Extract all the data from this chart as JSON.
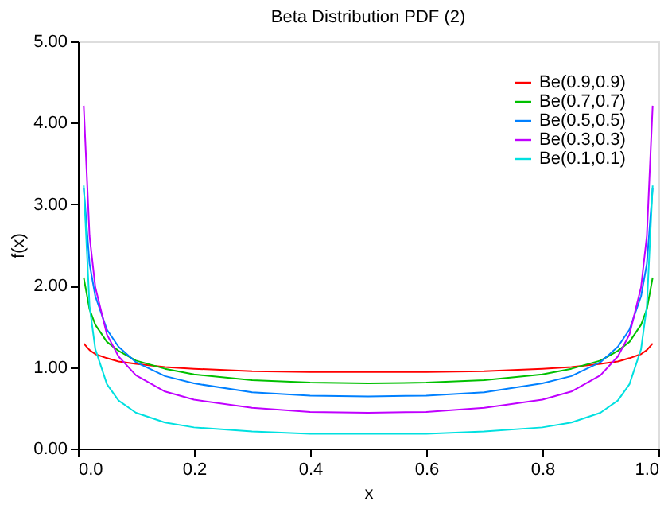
{
  "chart_data": {
    "type": "line",
    "title": "Beta Distribution PDF (2)",
    "xlabel": "x",
    "ylabel": "f(x)",
    "x": [
      0.01,
      0.02,
      0.03,
      0.05,
      0.07,
      0.1,
      0.15,
      0.2,
      0.3,
      0.4,
      0.5,
      0.6,
      0.7,
      0.8,
      0.85,
      0.9,
      0.93,
      0.95,
      0.97,
      0.98,
      0.99
    ],
    "series": [
      {
        "name": "Be(0.9,0.9)",
        "color": "#ff0000",
        "values": [
          1.29,
          1.21,
          1.16,
          1.11,
          1.07,
          1.04,
          1.0,
          0.98,
          0.95,
          0.94,
          0.94,
          0.94,
          0.95,
          0.98,
          1.0,
          1.04,
          1.07,
          1.11,
          1.16,
          1.21,
          1.29
        ]
      },
      {
        "name": "Be(0.7,0.7)",
        "color": "#00c000",
        "values": [
          2.1,
          1.71,
          1.52,
          1.31,
          1.2,
          1.08,
          0.98,
          0.91,
          0.84,
          0.81,
          0.8,
          0.81,
          0.84,
          0.91,
          0.98,
          1.08,
          1.2,
          1.31,
          1.52,
          1.71,
          2.1
        ]
      },
      {
        "name": "Be(0.5,0.5)",
        "color": "#0080ff",
        "values": [
          3.2,
          2.27,
          1.87,
          1.46,
          1.25,
          1.06,
          0.89,
          0.8,
          0.69,
          0.65,
          0.64,
          0.65,
          0.69,
          0.8,
          0.89,
          1.06,
          1.25,
          1.46,
          1.87,
          2.27,
          3.2
        ]
      },
      {
        "name": "Be(0.3,0.3)",
        "color": "#c000ff",
        "values": [
          4.21,
          2.61,
          1.98,
          1.4,
          1.13,
          0.9,
          0.7,
          0.6,
          0.5,
          0.45,
          0.44,
          0.45,
          0.5,
          0.6,
          0.7,
          0.9,
          1.13,
          1.4,
          1.98,
          2.61,
          4.21
        ]
      },
      {
        "name": "Be(0.1,0.1)",
        "color": "#00e0e0",
        "values": [
          3.23,
          1.75,
          1.22,
          0.79,
          0.59,
          0.44,
          0.32,
          0.26,
          0.21,
          0.18,
          0.18,
          0.18,
          0.21,
          0.26,
          0.32,
          0.44,
          0.59,
          0.79,
          1.22,
          1.75,
          3.23
        ]
      }
    ],
    "xlim": [
      0,
      1
    ],
    "ylim": [
      0,
      5
    ],
    "xticks": [
      {
        "value": 0,
        "label": "0.0"
      },
      0.2,
      0.4,
      0.6,
      0.8,
      {
        "value": 1,
        "label": "1.0"
      }
    ],
    "yticks": [
      {
        "value": 0,
        "label": "0.00"
      },
      {
        "value": 1,
        "label": "1.00"
      },
      {
        "value": 2,
        "label": "2.00"
      },
      {
        "value": 3,
        "label": "3.00"
      },
      {
        "value": 4,
        "label": "4.00"
      },
      {
        "value": 5,
        "label": "5.00"
      }
    ],
    "legend": "top right",
    "grid": false,
    "marker": "none",
    "line_style": "solid"
  }
}
